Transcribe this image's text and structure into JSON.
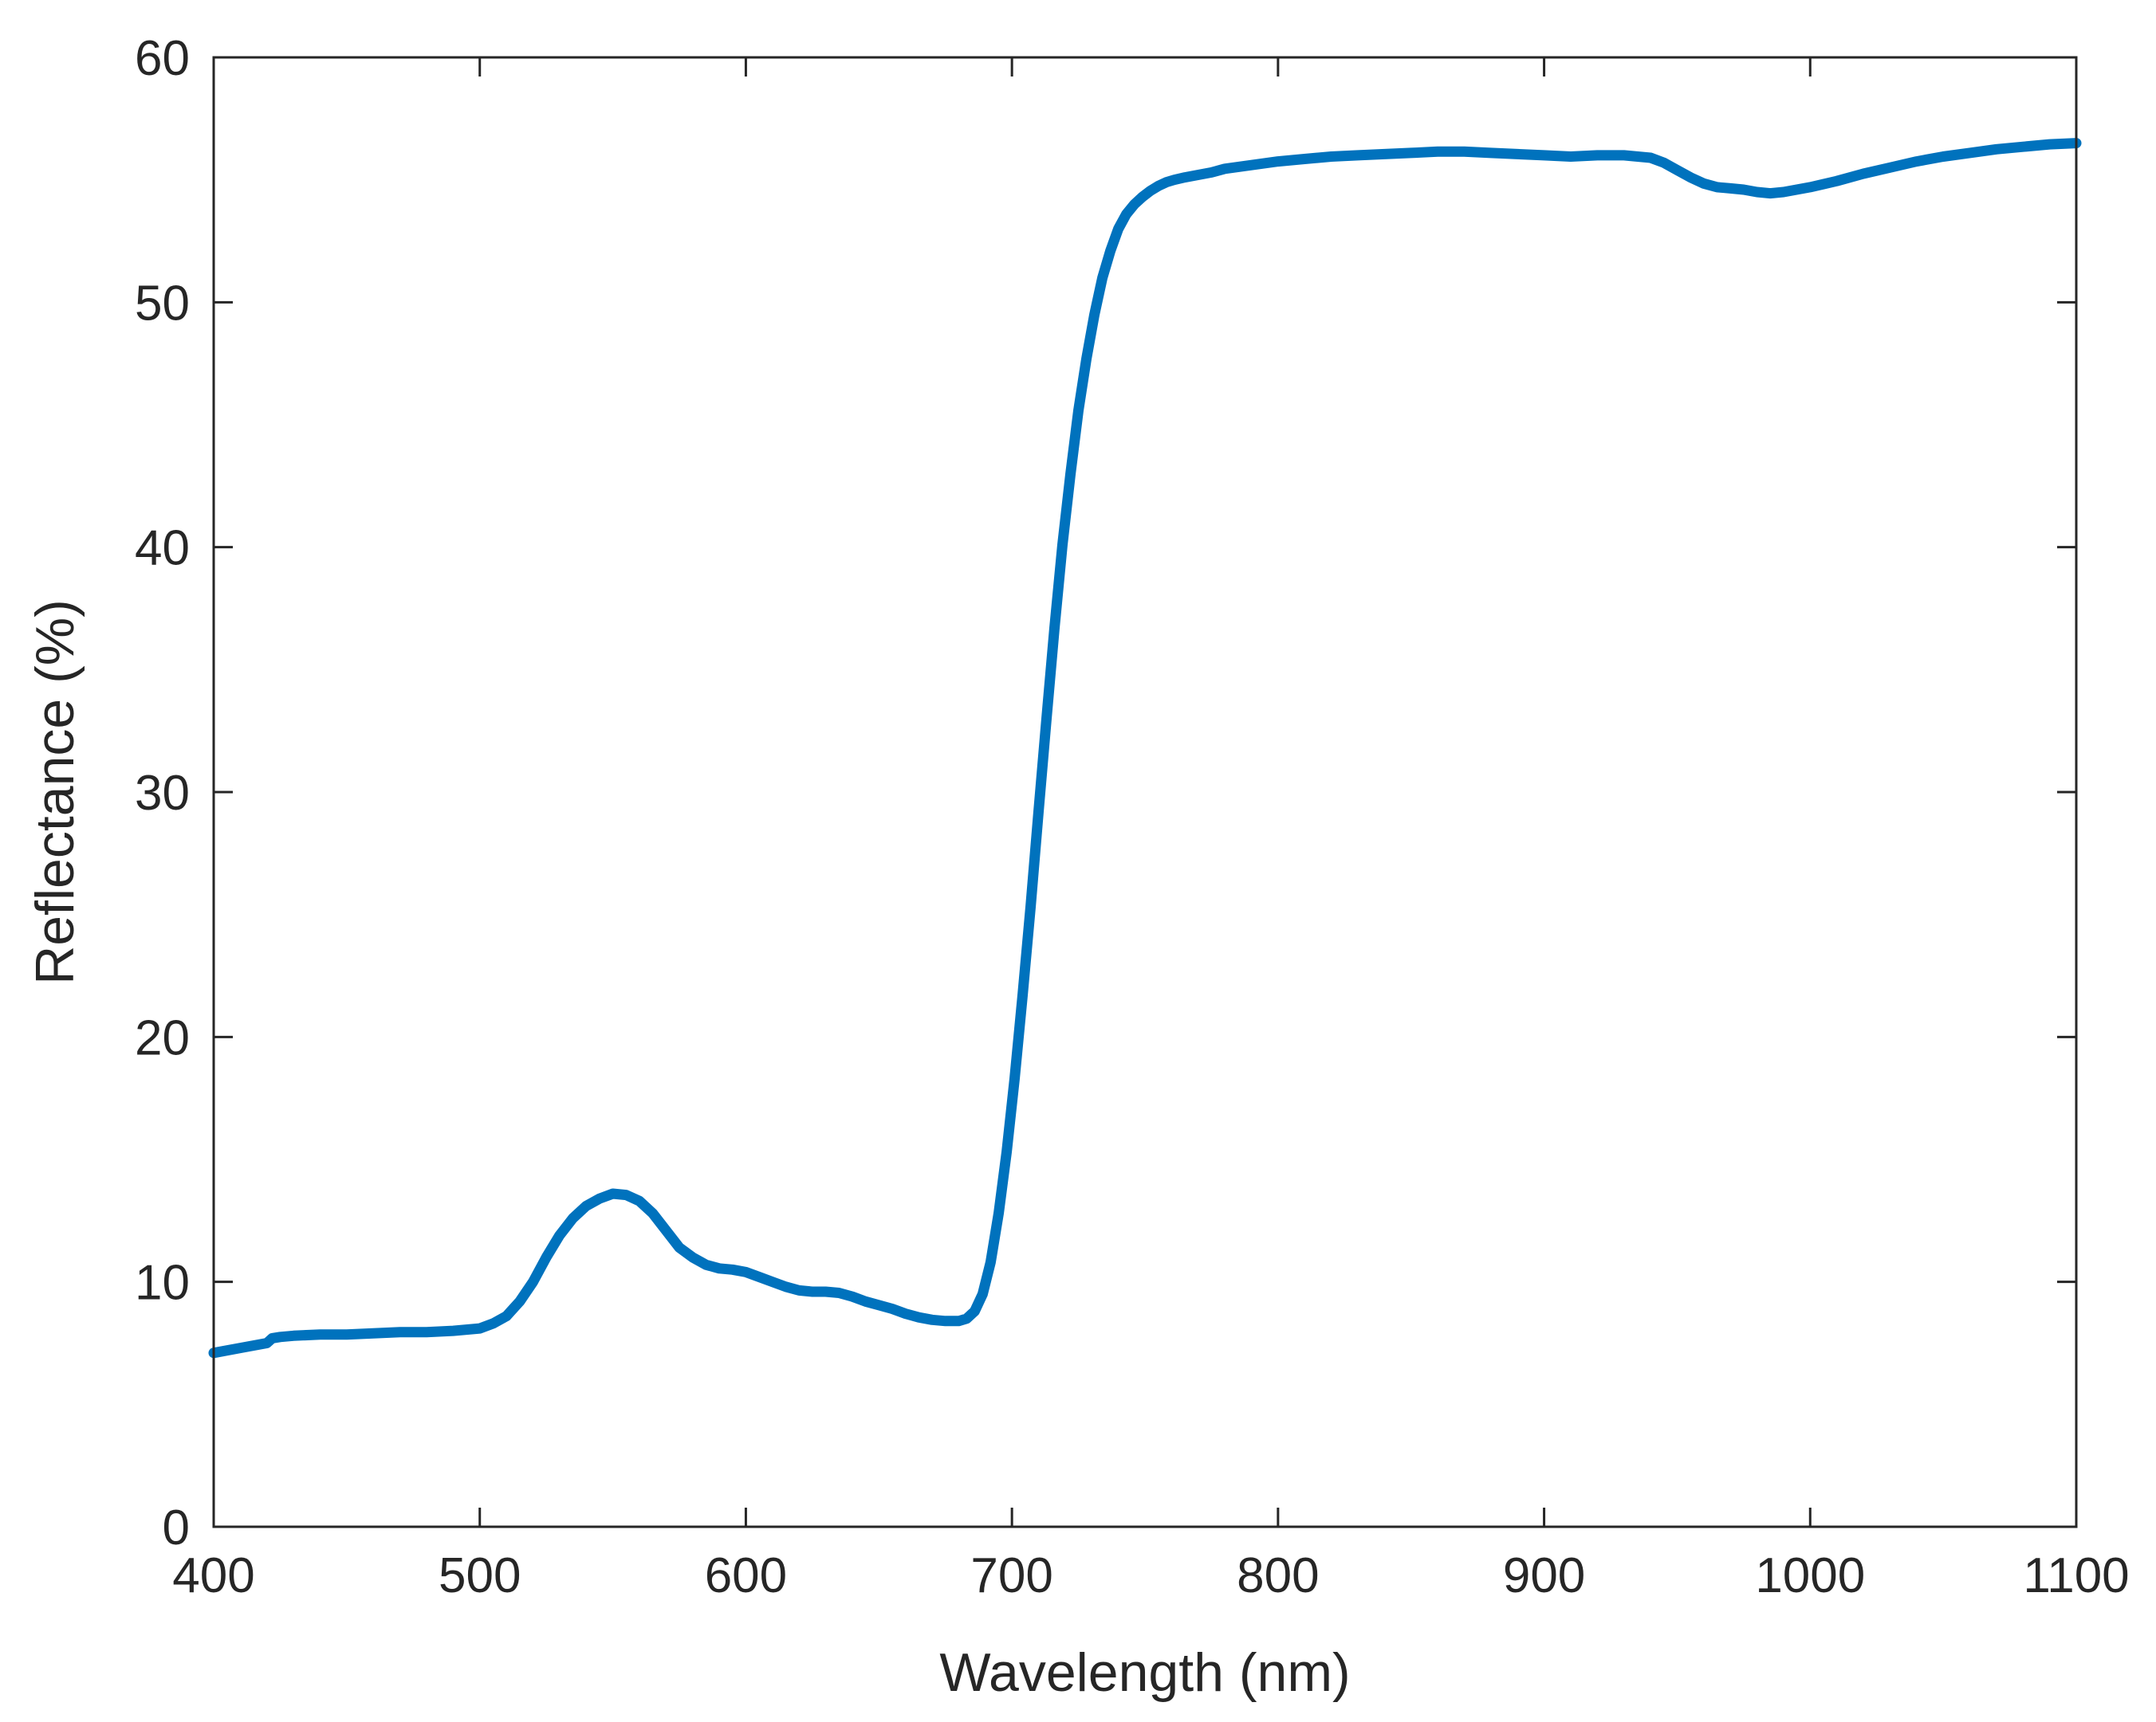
{
  "chart_data": {
    "type": "line",
    "xlabel": "Wavelength (nm)",
    "ylabel": "Reflectance (%)",
    "xlim": [
      400,
      1100
    ],
    "ylim": [
      0,
      60
    ],
    "xticks": [
      400,
      500,
      600,
      700,
      800,
      900,
      1000,
      1100
    ],
    "yticks": [
      0,
      10,
      20,
      30,
      40,
      50,
      60
    ],
    "xtick_labels": [
      "400",
      "500",
      "600",
      "700",
      "800",
      "900",
      "1000",
      "1100"
    ],
    "ytick_labels": [
      "0",
      "10",
      "20",
      "30",
      "40",
      "50",
      "60"
    ],
    "grid": false,
    "box": true,
    "series": [
      {
        "color": "#0072BD",
        "x": [
          400,
          410,
          420,
          422,
          425,
          430,
          440,
          450,
          460,
          470,
          480,
          490,
          500,
          505,
          510,
          515,
          520,
          525,
          530,
          535,
          540,
          545,
          550,
          555,
          560,
          565,
          570,
          575,
          580,
          585,
          590,
          595,
          600,
          605,
          610,
          615,
          620,
          625,
          630,
          635,
          640,
          645,
          650,
          655,
          660,
          665,
          670,
          675,
          680,
          683,
          686,
          689,
          692,
          695,
          698,
          701,
          704,
          707,
          710,
          713,
          716,
          719,
          722,
          725,
          728,
          731,
          734,
          737,
          740,
          743,
          746,
          749,
          752,
          755,
          758,
          761,
          765,
          770,
          775,
          780,
          790,
          800,
          810,
          820,
          830,
          840,
          850,
          860,
          870,
          880,
          890,
          900,
          910,
          920,
          930,
          940,
          945,
          950,
          955,
          960,
          965,
          970,
          975,
          980,
          985,
          990,
          1000,
          1010,
          1020,
          1030,
          1040,
          1050,
          1060,
          1070,
          1080,
          1090,
          1100
        ],
        "y": [
          7.1,
          7.3,
          7.5,
          7.7,
          7.75,
          7.8,
          7.85,
          7.85,
          7.9,
          7.95,
          7.95,
          8.0,
          8.1,
          8.3,
          8.6,
          9.2,
          10.0,
          11.0,
          11.9,
          12.6,
          13.1,
          13.4,
          13.6,
          13.55,
          13.3,
          12.8,
          12.1,
          11.4,
          11.0,
          10.7,
          10.55,
          10.5,
          10.4,
          10.2,
          10.0,
          9.8,
          9.65,
          9.6,
          9.6,
          9.55,
          9.4,
          9.2,
          9.05,
          8.9,
          8.7,
          8.55,
          8.45,
          8.4,
          8.4,
          8.5,
          8.8,
          9.5,
          10.8,
          12.8,
          15.3,
          18.3,
          21.7,
          25.3,
          29.2,
          33.0,
          36.7,
          40.1,
          43.0,
          45.6,
          47.7,
          49.5,
          51.0,
          52.1,
          53.0,
          53.6,
          54.0,
          54.3,
          54.55,
          54.75,
          54.9,
          55.0,
          55.1,
          55.2,
          55.3,
          55.45,
          55.6,
          55.75,
          55.85,
          55.95,
          56.0,
          56.05,
          56.1,
          56.15,
          56.15,
          56.1,
          56.05,
          56.0,
          55.95,
          56.0,
          56.0,
          55.9,
          55.7,
          55.4,
          55.1,
          54.85,
          54.7,
          54.65,
          54.6,
          54.5,
          54.45,
          54.5,
          54.7,
          54.95,
          55.25,
          55.5,
          55.75,
          55.95,
          56.1,
          56.25,
          56.35,
          56.45,
          56.5
        ]
      }
    ]
  }
}
